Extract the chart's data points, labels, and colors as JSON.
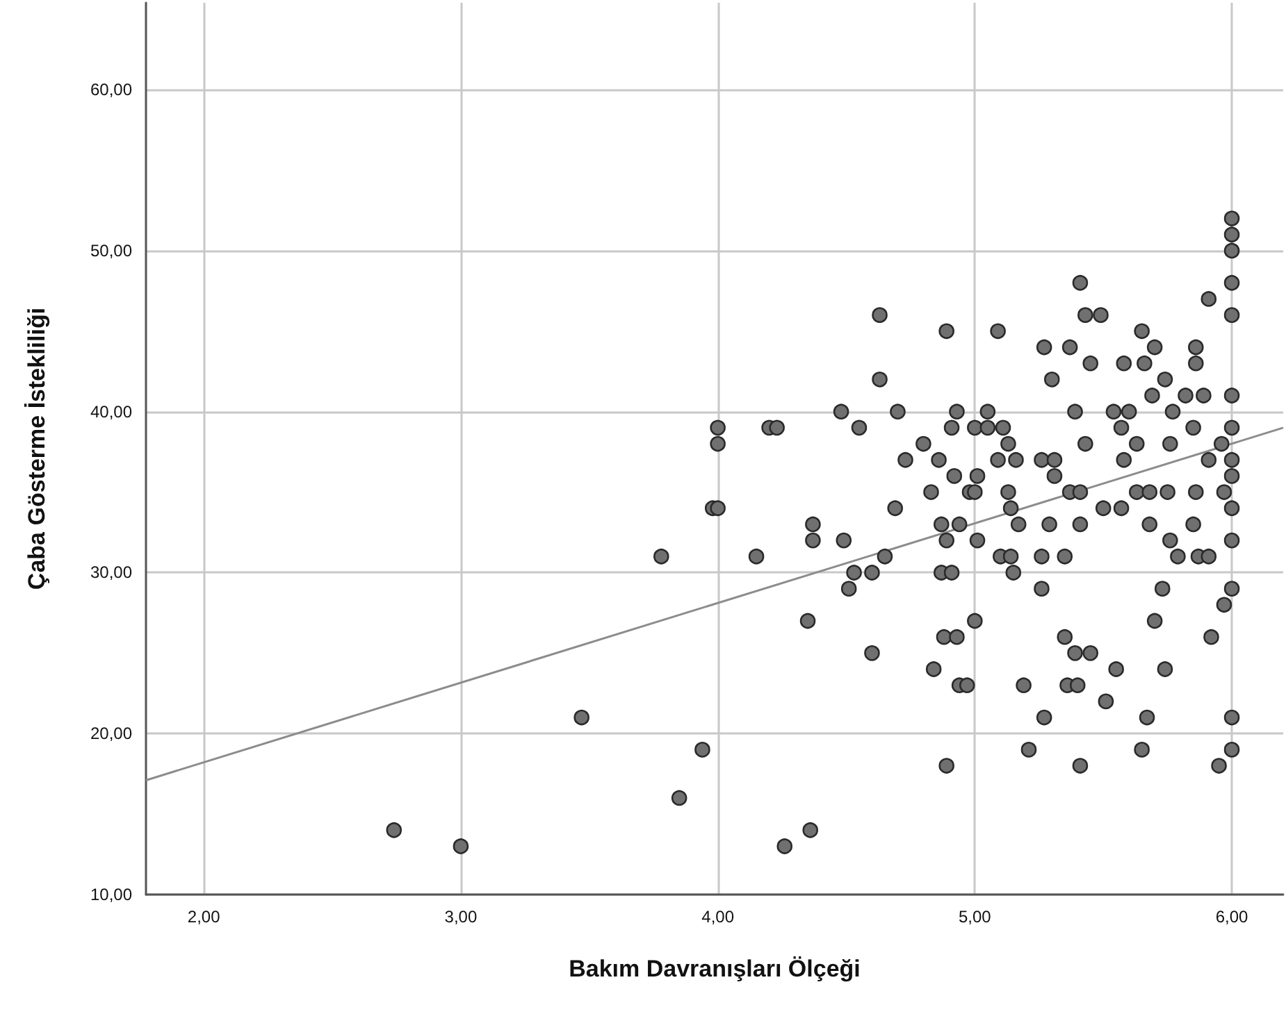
{
  "chart_data": {
    "type": "scatter",
    "xlabel": "Bakım Davranışları Ölçeği",
    "ylabel": "Çaba Gösterme İstekliliği",
    "xlim": [
      1.775,
      6.2
    ],
    "ylim": [
      10,
      65.4
    ],
    "xticks": [
      {
        "value": 2,
        "label": "2,00"
      },
      {
        "value": 3,
        "label": "3,00"
      },
      {
        "value": 4,
        "label": "4,00"
      },
      {
        "value": 5,
        "label": "5,00"
      },
      {
        "value": 6,
        "label": "6,00"
      }
    ],
    "yticks": [
      {
        "value": 10,
        "label": "10,00"
      },
      {
        "value": 20,
        "label": "20,00"
      },
      {
        "value": 30,
        "label": "30,00"
      },
      {
        "value": 40,
        "label": "40,00"
      },
      {
        "value": 50,
        "label": "50,00"
      },
      {
        "value": 60,
        "label": "60,00"
      }
    ],
    "grid": true,
    "series": [
      {
        "type": "scatter",
        "color": "#707070",
        "marker": "circle",
        "x": [
          4.63,
          4.89,
          4.63,
          4.48,
          4.7,
          4.93,
          4.0,
          4.0,
          4.2,
          4.23,
          4.55,
          4.8,
          4.73,
          4.86,
          4.83,
          4.69,
          3.98,
          4.0,
          4.37,
          4.37,
          4.49,
          3.78,
          4.15,
          4.65,
          4.53,
          4.6,
          4.51,
          4.87,
          4.89,
          4.87,
          4.91,
          6,
          6,
          6,
          6,
          6,
          5.91,
          5.41,
          5.43,
          5.49,
          5.09,
          5.65,
          5.27,
          5.37,
          5.7,
          5.86,
          5.45,
          5.58,
          5.66,
          5.86,
          5.3,
          5.74,
          5.69,
          5.82,
          5.89,
          6,
          5.05,
          5.39,
          5.54,
          5.6,
          5.77,
          4.91,
          5.0,
          5.05,
          5.11,
          5.57,
          5.85,
          6,
          5.13,
          5.43,
          5.63,
          5.76,
          5.96,
          5.09,
          5.16,
          5.26,
          5.31,
          5.58,
          5.91,
          6,
          4.92,
          5.01,
          5.31,
          6,
          4.98,
          5.0,
          5.13,
          5.37,
          5.41,
          5.63,
          5.68,
          5.75,
          5.86,
          5.97,
          5.14,
          5.5,
          5.57,
          6,
          4.94,
          5.17,
          5.29,
          5.41,
          5.68,
          5.85,
          5.01,
          5.76,
          6,
          5.1,
          5.14,
          5.26,
          5.35,
          5.79,
          5.87,
          5.91,
          5.15,
          5.26,
          5.73,
          6,
          4.35,
          4.6,
          4.84,
          4.88,
          4.93,
          3.94,
          3.85,
          4.36,
          4.26,
          4.89,
          5.97,
          5.0,
          5.7,
          5.35,
          5.92,
          5.39,
          5.45,
          5.55,
          5.74,
          4.94,
          4.97,
          5.19,
          5.36,
          5.4,
          5.51,
          5.27,
          5.67,
          6,
          5.21,
          5.65,
          6,
          5.95,
          5.41,
          3.47,
          2.74,
          3.0
        ],
        "values": [
          46,
          45,
          42,
          40,
          40,
          40,
          39,
          38,
          39,
          39,
          39,
          38,
          37,
          37,
          35,
          34,
          34,
          34,
          33,
          32,
          32,
          31,
          31,
          31,
          30,
          30,
          29,
          33,
          32,
          30,
          30,
          52,
          51,
          50,
          48,
          46,
          47,
          48,
          46,
          46,
          45,
          45,
          44,
          44,
          44,
          44,
          43,
          43,
          43,
          43,
          42,
          42,
          41,
          41,
          41,
          41,
          40,
          40,
          40,
          40,
          40,
          39,
          39,
          39,
          39,
          39,
          39,
          39,
          38,
          38,
          38,
          38,
          38,
          37,
          37,
          37,
          37,
          37,
          37,
          37,
          36,
          36,
          36,
          36,
          35,
          35,
          35,
          35,
          35,
          35,
          35,
          35,
          35,
          35,
          34,
          34,
          34,
          34,
          33,
          33,
          33,
          33,
          33,
          33,
          32,
          32,
          32,
          31,
          31,
          31,
          31,
          31,
          31,
          31,
          30,
          29,
          29,
          29,
          27,
          25,
          24,
          26,
          26,
          19,
          16,
          14,
          13,
          18,
          28,
          27,
          27,
          26,
          26,
          25,
          25,
          24,
          24,
          23,
          23,
          23,
          23,
          23,
          22,
          21,
          21,
          21,
          19,
          19,
          19,
          18,
          18,
          21,
          14,
          13
        ]
      },
      {
        "type": "line",
        "color": "#8c8c8c",
        "marker": "none",
        "line_style": "solid",
        "x": [
          1.775,
          6.2
        ],
        "values": [
          17.1,
          39.0
        ]
      }
    ]
  }
}
